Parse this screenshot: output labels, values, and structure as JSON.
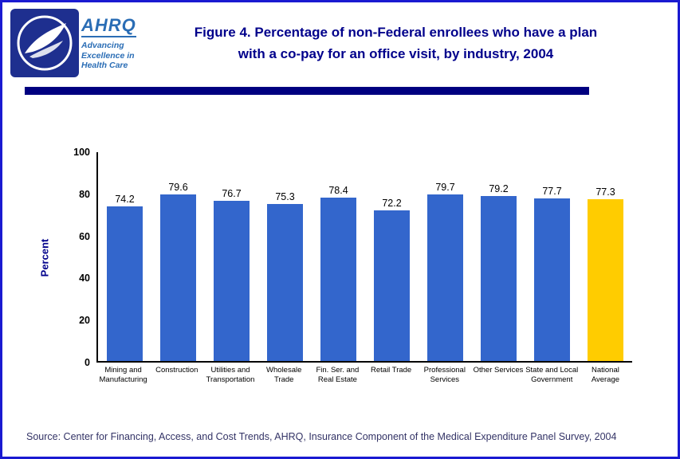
{
  "page": {
    "border_color": "#1a1ad1",
    "background": "#ffffff"
  },
  "header": {
    "title_line1": "Figure 4. Percentage of non-Federal  enrollees who have a plan",
    "title_line2": "with a co-pay for an office visit, by industry, 2004",
    "title_color": "#00008b",
    "logos": {
      "hhs_seal": "hhs-seal-icon",
      "ahrq_text": "AHRQ",
      "ahrq_tagline_line1": "Advancing",
      "ahrq_tagline_line2": "Excellence in",
      "ahrq_tagline_line3": "Health Care"
    }
  },
  "divider_color": "#000080",
  "chart_data": {
    "type": "bar",
    "title": "Percentage of non-Federal enrollees who have a plan with a co-pay for an office visit, by industry, 2004",
    "xlabel": "",
    "ylabel": "Percent",
    "ylim": [
      0,
      100
    ],
    "yticks": [
      100,
      80,
      60,
      40,
      20,
      0
    ],
    "grid": false,
    "legend": "none",
    "categories": [
      "Mining and\nManufacturing",
      "Construction",
      "Utilities and\nTransportation",
      "Wholesale\nTrade",
      "Fin. Ser. and\nReal Estate",
      "Retail Trade",
      "Professional\nServices",
      "Other Services",
      "State and Local\nGovernment",
      "National\nAverage"
    ],
    "values": [
      74.2,
      79.6,
      76.7,
      75.3,
      78.4,
      72.2,
      79.7,
      79.2,
      77.7,
      77.3
    ],
    "bar_color": "#3366cc",
    "highlight_index": 9,
    "highlight_color": "#ffcc00"
  },
  "source": "Source: Center for Financing, Access, and Cost Trends, AHRQ, Insurance Component of the Medical Expenditure Panel Survey, 2004"
}
